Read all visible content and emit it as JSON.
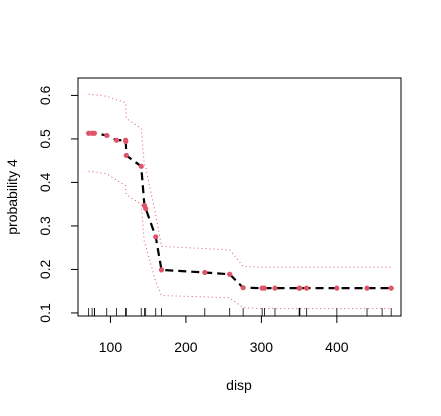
{
  "chart_data": {
    "type": "line",
    "xlabel": "disp",
    "ylabel": "probability 4",
    "xlim": [
      57,
      485
    ],
    "ylim": [
      0.093,
      0.64
    ],
    "xticks": [
      100,
      200,
      300,
      400
    ],
    "yticks": [
      0.1,
      0.2,
      0.3,
      0.4,
      0.5,
      0.6
    ],
    "xtick_labels": [
      "100",
      "200",
      "300",
      "400"
    ],
    "ytick_labels": [
      "0.1",
      "0.2",
      "0.3",
      "0.4",
      "0.5",
      "0.6"
    ],
    "grid": false,
    "series": [
      {
        "role": "estimate",
        "style": "dashed",
        "color": "#000000",
        "point_color": "#df536b",
        "x": [
          71.1,
          75.7,
          78.7,
          95.1,
          108,
          120.1,
          120.3,
          121,
          140.8,
          145,
          146.7,
          160,
          167.6,
          225,
          258,
          275.8,
          301,
          304,
          318,
          350,
          351,
          360,
          400,
          440,
          472
        ],
        "y": [
          0.513,
          0.513,
          0.513,
          0.508,
          0.497,
          0.497,
          0.494,
          0.462,
          0.437,
          0.347,
          0.34,
          0.275,
          0.199,
          0.193,
          0.189,
          0.158,
          0.157,
          0.157,
          0.157,
          0.157,
          0.157,
          0.157,
          0.157,
          0.157,
          0.157
        ]
      },
      {
        "role": "upper-band",
        "style": "dotted",
        "color": "#df536b",
        "x": [
          71.1,
          95.1,
          108,
          120.1,
          121,
          140.8,
          145,
          146.7,
          160,
          167.6,
          258,
          275.8,
          301,
          472
        ],
        "y": [
          0.603,
          0.598,
          0.59,
          0.583,
          0.547,
          0.524,
          0.44,
          0.435,
          0.325,
          0.253,
          0.245,
          0.207,
          0.205,
          0.205
        ]
      },
      {
        "role": "lower-band",
        "style": "dotted",
        "color": "#df536b",
        "x": [
          71.1,
          95.1,
          108,
          120.1,
          121,
          140.8,
          145,
          146.7,
          160,
          167.6,
          258,
          275.8,
          301,
          472
        ],
        "y": [
          0.426,
          0.42,
          0.405,
          0.393,
          0.372,
          0.35,
          0.26,
          0.255,
          0.172,
          0.14,
          0.135,
          0.112,
          0.11,
          0.11
        ]
      }
    ],
    "rug": [
      71.1,
      75.7,
      78.7,
      79,
      95.1,
      108,
      120.1,
      120.3,
      121,
      140.8,
      145,
      146.7,
      160,
      167.6,
      225,
      258,
      275.8,
      301,
      304,
      318,
      350,
      351,
      360,
      400,
      440,
      460,
      472
    ]
  }
}
